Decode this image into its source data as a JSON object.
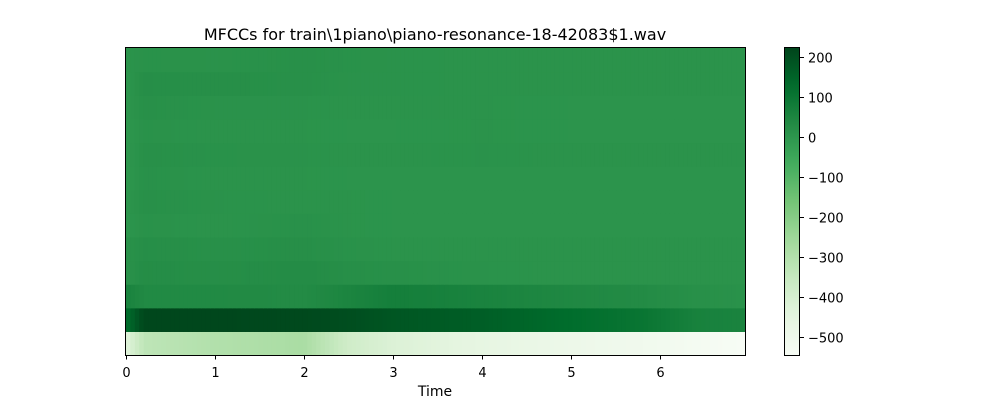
{
  "chart_data": {
    "type": "heatmap",
    "title": "MFCCs for train\\1piano\\piano-resonance-18-42083$1.wav",
    "xlabel": "Time",
    "ylabel": "",
    "xlim": [
      0,
      6.95
    ],
    "x_ticks": [
      0,
      1,
      2,
      3,
      4,
      5,
      6
    ],
    "y_ticks": [],
    "colormap": "Greens",
    "colorbar": {
      "vmin": -545,
      "vmax": 222,
      "ticks": [
        200,
        100,
        0,
        -100,
        -200,
        -300,
        -400,
        -500
      ],
      "tick_labels": [
        "200",
        "100",
        "0",
        "−100",
        "−200",
        "−300",
        "−400",
        "−500"
      ]
    },
    "n_coefficients": 13,
    "time_knots": [
      0,
      0.2,
      1,
      2,
      2.5,
      3,
      4,
      5,
      5.8,
      6.4,
      6.95
    ],
    "rows": [
      {
        "coefficient": 0,
        "values": [
          -440,
          -330,
          -300,
          -280,
          -380,
          -420,
          -460,
          -490,
          -510,
          -530,
          -545
        ]
      },
      {
        "coefficient": 1,
        "values": [
          120,
          215,
          215,
          210,
          200,
          180,
          160,
          125,
          100,
          60,
          55
        ]
      },
      {
        "coefficient": 2,
        "values": [
          60,
          35,
          35,
          30,
          50,
          70,
          55,
          40,
          30,
          15,
          10
        ]
      },
      {
        "coefficient": 3,
        "values": [
          10,
          25,
          20,
          28,
          18,
          15,
          8,
          5,
          5,
          5,
          5
        ]
      },
      {
        "coefficient": 4,
        "values": [
          10,
          20,
          15,
          18,
          10,
          6,
          5,
          5,
          5,
          5,
          5
        ]
      },
      {
        "coefficient": 5,
        "values": [
          0,
          10,
          5,
          12,
          5,
          3,
          2,
          2,
          2,
          2,
          2
        ]
      },
      {
        "coefficient": 6,
        "values": [
          0,
          15,
          8,
          5,
          5,
          3,
          2,
          2,
          2,
          2,
          2
        ]
      },
      {
        "coefficient": 7,
        "values": [
          -5,
          12,
          5,
          5,
          3,
          3,
          2,
          2,
          2,
          2,
          2
        ]
      },
      {
        "coefficient": 8,
        "values": [
          -5,
          15,
          10,
          8,
          5,
          5,
          8,
          5,
          5,
          5,
          5
        ]
      },
      {
        "coefficient": 9,
        "values": [
          -5,
          10,
          5,
          5,
          3,
          3,
          5,
          3,
          3,
          3,
          3
        ]
      },
      {
        "coefficient": 10,
        "values": [
          0,
          15,
          8,
          8,
          5,
          5,
          5,
          3,
          3,
          3,
          3
        ]
      },
      {
        "coefficient": 11,
        "values": [
          0,
          20,
          18,
          15,
          8,
          8,
          5,
          5,
          5,
          5,
          5
        ]
      },
      {
        "coefficient": 12,
        "values": [
          5,
          10,
          8,
          15,
          10,
          8,
          5,
          5,
          5,
          5,
          5
        ]
      }
    ]
  }
}
